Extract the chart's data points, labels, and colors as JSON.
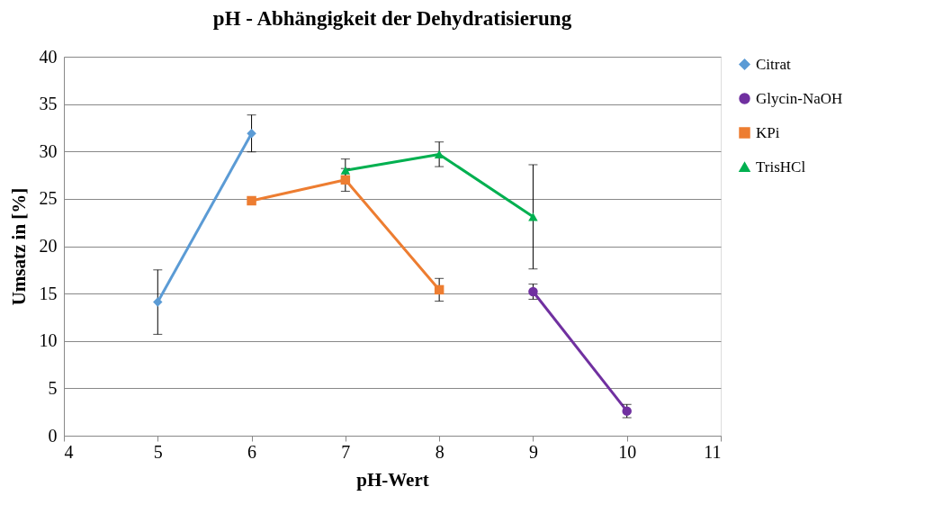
{
  "chart_data": {
    "type": "line",
    "title": "pH - Abhängigkeit der Dehydratisierung",
    "xlabel": "pH-Wert",
    "ylabel": "Umsatz in [%]",
    "xlim": [
      4,
      11
    ],
    "xticks": [
      4,
      5,
      6,
      7,
      8,
      9,
      10,
      11
    ],
    "ylim": [
      0,
      40
    ],
    "yticks": [
      0,
      5,
      10,
      15,
      20,
      25,
      30,
      35,
      40
    ],
    "grid": "y",
    "legend": "right",
    "series": [
      {
        "name": "Citrat",
        "color": "#5b9bd5",
        "marker": "diamond",
        "x": [
          5,
          6
        ],
        "values": [
          14.1,
          31.9
        ],
        "errors": [
          3.4,
          1.95
        ]
      },
      {
        "name": "Glycin-NaOH",
        "color": "#7030a0",
        "marker": "circle",
        "x": [
          9,
          10
        ],
        "values": [
          15.2,
          2.6
        ],
        "errors": [
          0.8,
          0.7
        ]
      },
      {
        "name": "KPi",
        "color": "#ed7d31",
        "marker": "square",
        "x": [
          6,
          7,
          8
        ],
        "values": [
          24.8,
          27.0,
          15.4
        ],
        "errors": [
          null,
          1.2,
          1.2
        ]
      },
      {
        "name": "TrisHCl",
        "color": "#00b050",
        "marker": "triangle",
        "x": [
          7,
          8,
          9
        ],
        "values": [
          28.0,
          29.7,
          23.1
        ],
        "errors": [
          1.2,
          1.3,
          5.5
        ]
      }
    ]
  }
}
